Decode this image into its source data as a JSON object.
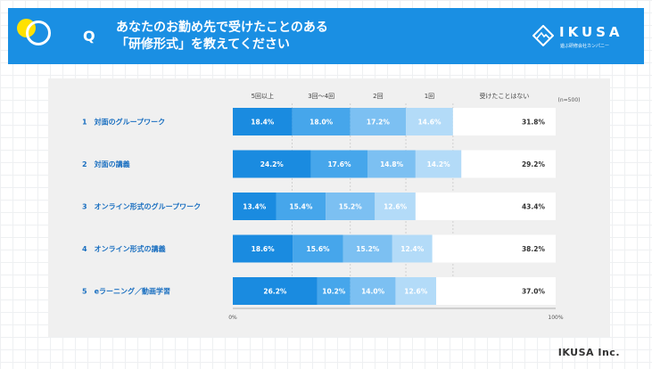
{
  "header": {
    "q_letter": "Q",
    "title_line1": "あなたのお勤め先で受けたことのある",
    "title_line2": "「研修形式」を教えてください",
    "logo_text": "IKUSA",
    "logo_sub": "遊ぶ研修会社カンパニー"
  },
  "footer": {
    "credit": "IKUSA Inc."
  },
  "chart_data": {
    "type": "bar",
    "orientation": "horizontal",
    "stacked": true,
    "note": "(n=500)",
    "legend_position": "top",
    "categories": [
      "1　対面のグループワーク",
      "2　対面の講義",
      "3　オンライン形式のグループワーク",
      "4　オンライン形式の講義",
      "5　eラーニング／動画学習"
    ],
    "series": [
      {
        "name": "5回以上",
        "values": [
          18.4,
          24.2,
          13.4,
          18.6,
          26.2
        ]
      },
      {
        "name": "3回〜4回",
        "values": [
          18.0,
          17.6,
          15.4,
          15.6,
          10.2
        ]
      },
      {
        "name": "2回",
        "values": [
          17.2,
          14.8,
          15.2,
          15.2,
          14.0
        ]
      },
      {
        "name": "1回",
        "values": [
          14.6,
          14.2,
          12.6,
          12.4,
          12.6
        ]
      },
      {
        "name": "受けたことはない",
        "values": [
          31.8,
          29.2,
          43.4,
          38.2,
          37.0
        ]
      }
    ],
    "xlim": [
      0,
      100
    ],
    "x_tick_labels": [
      "0%",
      "100%"
    ],
    "colors": [
      "#1a8be0",
      "#46a6eb",
      "#7cc0f2",
      "#b3dbf8",
      "#ffffff"
    ],
    "label_colors": [
      "#ffffff",
      "#ffffff",
      "#ffffff",
      "#ffffff",
      "#333333"
    ],
    "category_color": "#1a6fc0",
    "grid": true
  }
}
